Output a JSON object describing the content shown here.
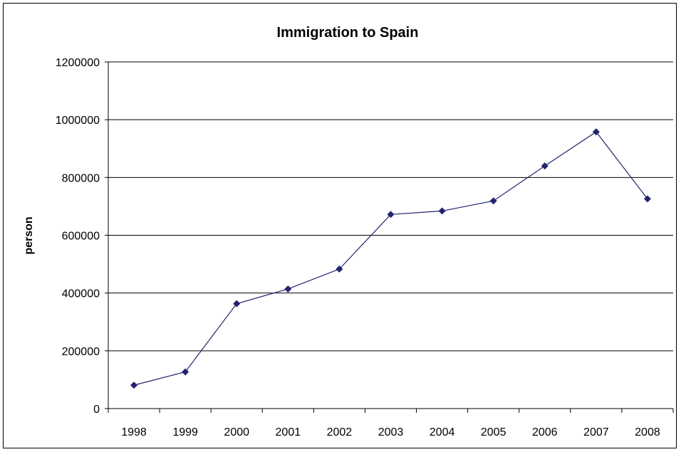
{
  "chart_data": {
    "type": "line",
    "title": "Immigration to Spain",
    "xlabel": "",
    "ylabel": "person",
    "categories": [
      "1998",
      "1999",
      "2000",
      "2001",
      "2002",
      "2003",
      "2004",
      "2005",
      "2006",
      "2007",
      "2008"
    ],
    "series": [
      {
        "values": [
          81000,
          127000,
          363000,
          414000,
          483000,
          672000,
          684000,
          719000,
          840000,
          958000,
          726000
        ]
      }
    ],
    "ylim": [
      0,
      1200000
    ],
    "yticks": [
      "0",
      "200000",
      "400000",
      "600000",
      "800000",
      "1000000",
      "1200000"
    ],
    "grid": true,
    "legend": "none",
    "colors": {
      "line": "#23236e",
      "marker": "#23236e",
      "grid": "#000000",
      "axis": "#000000"
    }
  }
}
